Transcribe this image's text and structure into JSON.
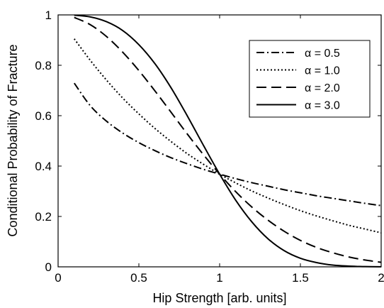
{
  "chart_data": {
    "type": "line",
    "title": "",
    "xlabel": "Hip Strength [arb. units]",
    "ylabel": "Conditional Probability of Fracture",
    "xlim": [
      0,
      2
    ],
    "ylim": [
      0,
      1
    ],
    "xticks": [
      0,
      0.5,
      1,
      1.5,
      2
    ],
    "xtick_labels": [
      "0",
      "0.5",
      "1",
      "1.5",
      "2"
    ],
    "yticks": [
      0,
      0.2,
      0.4,
      0.6,
      0.8,
      1
    ],
    "ytick_labels": [
      "0",
      "0.2",
      "0.4",
      "0.6",
      "0.8",
      "1"
    ],
    "grid": false,
    "legend_position": "top-right",
    "x": [
      0.1,
      0.2,
      0.3,
      0.4,
      0.5,
      0.6,
      0.7,
      0.8,
      0.9,
      1.0,
      1.1,
      1.2,
      1.3,
      1.4,
      1.5,
      1.6,
      1.7,
      1.8,
      1.9,
      2.0
    ],
    "series": [
      {
        "name": "α = 0.5",
        "dash": "dash-dot",
        "values": [
          0.729,
          0.639,
          0.578,
          0.531,
          0.493,
          0.461,
          0.433,
          0.409,
          0.387,
          0.368,
          0.35,
          0.334,
          0.32,
          0.306,
          0.294,
          0.282,
          0.272,
          0.262,
          0.252,
          0.243
        ]
      },
      {
        "name": "α = 1.0",
        "dash": "dotted",
        "values": [
          0.905,
          0.819,
          0.741,
          0.67,
          0.607,
          0.549,
          0.497,
          0.449,
          0.407,
          0.368,
          0.333,
          0.301,
          0.273,
          0.247,
          0.223,
          0.202,
          0.183,
          0.165,
          0.15,
          0.135
        ]
      },
      {
        "name": "α = 2.0",
        "dash": "dashed",
        "values": [
          0.99,
          0.961,
          0.914,
          0.852,
          0.779,
          0.698,
          0.613,
          0.527,
          0.445,
          0.368,
          0.298,
          0.237,
          0.185,
          0.141,
          0.105,
          0.077,
          0.056,
          0.039,
          0.027,
          0.018
        ]
      },
      {
        "name": "α = 3.0",
        "dash": "solid",
        "values": [
          0.999,
          0.992,
          0.973,
          0.938,
          0.882,
          0.806,
          0.71,
          0.599,
          0.482,
          0.368,
          0.264,
          0.178,
          0.111,
          0.064,
          0.034,
          0.017,
          0.007,
          0.003,
          0.001,
          0.0003
        ]
      }
    ]
  }
}
